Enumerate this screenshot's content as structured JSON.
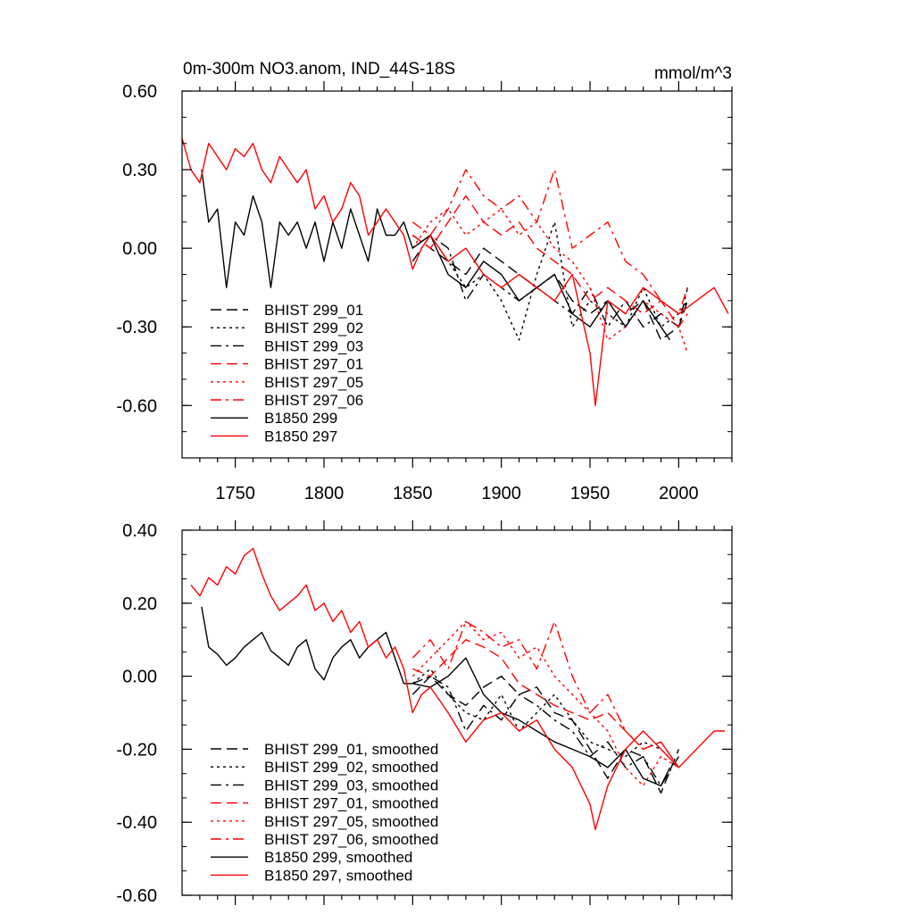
{
  "chart_data": [
    {
      "type": "line",
      "title": "0m-300m NO3.anom, IND_44S-18S",
      "units": "mmol/m^3",
      "xlim": [
        1720,
        2030
      ],
      "ylim": [
        -0.8,
        0.6
      ],
      "x_ticks": [
        1750,
        1800,
        1850,
        1900,
        1950,
        2000
      ],
      "x_tick_labels": [
        "1750",
        "1800",
        "1850",
        "1900",
        "1950",
        "2000"
      ],
      "y_ticks": [
        0.6,
        0.3,
        0.0,
        -0.3,
        -0.6
      ],
      "y_tick_labels": [
        "0.60",
        "0.30",
        "0.00",
        "-0.30",
        "-0.60"
      ],
      "grid": false,
      "legend_position": "bottom-left",
      "series": [
        {
          "name": "BHIST 299_01",
          "color": "#000000",
          "dash": "dash",
          "x": [
            1850,
            1860,
            1870,
            1880,
            1890,
            1900,
            1910,
            1920,
            1930,
            1940,
            1950,
            1960,
            1970,
            1980,
            1990,
            2000,
            2005
          ],
          "values": [
            0.05,
            0.0,
            -0.05,
            -0.1,
            0.0,
            -0.05,
            -0.1,
            -0.15,
            -0.1,
            -0.2,
            -0.25,
            -0.2,
            -0.25,
            -0.2,
            -0.35,
            -0.3,
            -0.2
          ]
        },
        {
          "name": "BHIST 299_02",
          "color": "#000000",
          "dash": "dot",
          "x": [
            1850,
            1860,
            1870,
            1880,
            1890,
            1900,
            1910,
            1920,
            1930,
            1940,
            1950,
            1960,
            1970,
            1980,
            1990,
            2000,
            2005
          ],
          "values": [
            0.0,
            0.05,
            -0.05,
            -0.15,
            -0.1,
            -0.2,
            -0.35,
            -0.1,
            0.1,
            -0.3,
            -0.2,
            -0.25,
            -0.3,
            -0.15,
            -0.3,
            -0.25,
            -0.2
          ]
        },
        {
          "name": "BHIST 299_03",
          "color": "#000000",
          "dash": "dashdot",
          "x": [
            1850,
            1860,
            1870,
            1880,
            1890,
            1900,
            1910,
            1920,
            1930,
            1940,
            1950,
            1960,
            1970,
            1980,
            1990,
            2000,
            2005
          ],
          "values": [
            -0.05,
            0.05,
            0.0,
            -0.2,
            -0.1,
            -0.15,
            -0.2,
            -0.15,
            -0.2,
            -0.25,
            -0.15,
            -0.3,
            -0.2,
            -0.3,
            -0.25,
            -0.3,
            -0.15
          ]
        },
        {
          "name": "BHIST 297_01",
          "color": "#ff0000",
          "dash": "dash",
          "x": [
            1850,
            1860,
            1870,
            1880,
            1890,
            1900,
            1910,
            1920,
            1930,
            1940,
            1950,
            1960,
            1970,
            1980,
            1990,
            2000,
            2005
          ],
          "values": [
            0.05,
            0.0,
            0.1,
            0.2,
            0.1,
            0.05,
            0.1,
            0.0,
            -0.05,
            -0.1,
            -0.2,
            -0.15,
            -0.2,
            -0.25,
            -0.2,
            -0.3,
            -0.25
          ]
        },
        {
          "name": "BHIST 297_05",
          "color": "#ff0000",
          "dash": "dot",
          "x": [
            1850,
            1860,
            1870,
            1880,
            1890,
            1900,
            1910,
            1920,
            1930,
            1940,
            1950,
            1960,
            1970,
            1980,
            1990,
            2000,
            2005
          ],
          "values": [
            0.0,
            0.1,
            0.15,
            0.05,
            0.1,
            0.15,
            0.05,
            0.1,
            0.0,
            -0.05,
            -0.15,
            -0.35,
            -0.3,
            -0.2,
            -0.25,
            -0.3,
            -0.4
          ]
        },
        {
          "name": "BHIST 297_06",
          "color": "#ff0000",
          "dash": "dashdot",
          "x": [
            1850,
            1860,
            1870,
            1880,
            1890,
            1900,
            1910,
            1920,
            1930,
            1940,
            1950,
            1960,
            1970,
            1980,
            1990,
            2000,
            2005
          ],
          "values": [
            0.1,
            0.05,
            0.15,
            0.3,
            0.2,
            0.15,
            0.2,
            0.1,
            0.3,
            0.0,
            0.05,
            0.1,
            -0.05,
            -0.1,
            -0.2,
            -0.25,
            -0.15
          ]
        },
        {
          "name": "B1850 299",
          "color": "#000000",
          "dash": "solid",
          "x": [
            1731,
            1735,
            1740,
            1745,
            1750,
            1755,
            1760,
            1765,
            1770,
            1775,
            1780,
            1785,
            1790,
            1795,
            1800,
            1805,
            1810,
            1815,
            1820,
            1825,
            1830,
            1835,
            1840,
            1845,
            1850,
            1860,
            1870,
            1880,
            1890,
            1900,
            1910,
            1920,
            1930,
            1940,
            1950,
            1960,
            1970,
            1980,
            1990,
            1995
          ],
          "values": [
            0.3,
            0.1,
            0.15,
            -0.15,
            0.1,
            0.05,
            0.2,
            0.1,
            -0.15,
            0.1,
            0.05,
            0.1,
            0.0,
            0.1,
            -0.05,
            0.1,
            0.0,
            0.15,
            0.05,
            -0.05,
            0.15,
            0.05,
            0.05,
            0.1,
            0.0,
            0.05,
            -0.1,
            -0.15,
            -0.05,
            -0.1,
            -0.2,
            -0.15,
            -0.1,
            -0.25,
            -0.3,
            -0.2,
            -0.3,
            -0.2,
            -0.3,
            -0.35
          ]
        },
        {
          "name": "B1850 297",
          "color": "#ff0000",
          "dash": "solid",
          "x": [
            1720,
            1725,
            1730,
            1735,
            1740,
            1745,
            1750,
            1755,
            1760,
            1765,
            1770,
            1775,
            1780,
            1785,
            1790,
            1795,
            1800,
            1805,
            1810,
            1815,
            1820,
            1825,
            1830,
            1835,
            1840,
            1845,
            1850,
            1855,
            1860,
            1870,
            1880,
            1890,
            1900,
            1910,
            1920,
            1930,
            1940,
            1950,
            1953,
            1960,
            1970,
            1980,
            1990,
            2000,
            2010,
            2020,
            2028
          ],
          "values": [
            0.42,
            0.3,
            0.25,
            0.4,
            0.35,
            0.3,
            0.38,
            0.35,
            0.4,
            0.3,
            0.25,
            0.35,
            0.3,
            0.25,
            0.3,
            0.15,
            0.2,
            0.1,
            0.15,
            0.25,
            0.2,
            0.05,
            0.1,
            0.15,
            0.1,
            0.05,
            -0.08,
            0.0,
            0.05,
            -0.05,
            0.0,
            -0.1,
            -0.15,
            -0.1,
            -0.15,
            -0.2,
            -0.1,
            -0.4,
            -0.6,
            -0.2,
            -0.25,
            -0.15,
            -0.2,
            -0.25,
            -0.2,
            -0.15,
            -0.25
          ]
        }
      ]
    },
    {
      "type": "line",
      "xlim": [
        1720,
        2030
      ],
      "ylim": [
        -0.6,
        0.4
      ],
      "y_ticks": [
        0.4,
        0.2,
        0.0,
        -0.2,
        -0.4,
        -0.6
      ],
      "y_tick_labels": [
        "0.40",
        "0.20",
        "0.00",
        "-0.20",
        "-0.40",
        "-0.60"
      ],
      "grid": false,
      "legend_position": "bottom-left",
      "series": [
        {
          "name": "BHIST 299_01, smoothed",
          "color": "#000000",
          "dash": "dash",
          "x": [
            1850,
            1860,
            1870,
            1880,
            1890,
            1900,
            1910,
            1920,
            1930,
            1940,
            1950,
            1960,
            1970,
            1980,
            1990,
            2000
          ],
          "values": [
            -0.05,
            0.0,
            -0.05,
            -0.08,
            -0.03,
            0.0,
            -0.05,
            -0.03,
            -0.1,
            -0.12,
            -0.2,
            -0.28,
            -0.2,
            -0.22,
            -0.32,
            -0.2
          ]
        },
        {
          "name": "BHIST 299_02, smoothed",
          "color": "#000000",
          "dash": "dot",
          "x": [
            1850,
            1860,
            1870,
            1880,
            1890,
            1900,
            1910,
            1920,
            1930,
            1940,
            1950,
            1960,
            1970,
            1980,
            1990,
            2000
          ],
          "values": [
            -0.02,
            0.02,
            -0.05,
            -0.1,
            -0.12,
            -0.05,
            -0.15,
            -0.1,
            -0.05,
            -0.12,
            -0.18,
            -0.2,
            -0.22,
            -0.18,
            -0.2,
            -0.25
          ]
        },
        {
          "name": "BHIST 299_03, smoothed",
          "color": "#000000",
          "dash": "dashdot",
          "x": [
            1850,
            1860,
            1870,
            1880,
            1890,
            1900,
            1910,
            1920,
            1930,
            1940,
            1950,
            1960,
            1970,
            1980,
            1990,
            2000
          ],
          "values": [
            -0.02,
            0.0,
            -0.03,
            -0.15,
            -0.08,
            -0.12,
            -0.05,
            -0.08,
            -0.12,
            -0.15,
            -0.22,
            -0.18,
            -0.25,
            -0.22,
            -0.3,
            -0.22
          ]
        },
        {
          "name": "BHIST 297_01, smoothed",
          "color": "#ff0000",
          "dash": "dash",
          "x": [
            1850,
            1860,
            1870,
            1880,
            1890,
            1900,
            1910,
            1920,
            1930,
            1940,
            1950,
            1960,
            1970,
            1980,
            1990,
            2000
          ],
          "values": [
            0.02,
            0.0,
            0.05,
            0.1,
            0.08,
            0.05,
            -0.02,
            -0.05,
            -0.08,
            -0.1,
            -0.12,
            -0.1,
            -0.15,
            -0.2,
            -0.18,
            -0.25
          ]
        },
        {
          "name": "BHIST 297_05, smoothed",
          "color": "#ff0000",
          "dash": "dot",
          "x": [
            1850,
            1860,
            1870,
            1880,
            1890,
            1900,
            1910,
            1920,
            1930,
            1940,
            1950,
            1960,
            1970,
            1980,
            1990,
            2000
          ],
          "values": [
            0.0,
            0.05,
            0.1,
            0.15,
            0.1,
            0.12,
            0.05,
            0.08,
            0.0,
            -0.05,
            -0.1,
            -0.15,
            -0.25,
            -0.3,
            -0.22,
            -0.25
          ]
        },
        {
          "name": "BHIST 297_06, smoothed",
          "color": "#ff0000",
          "dash": "dashdot",
          "x": [
            1850,
            1860,
            1870,
            1880,
            1890,
            1900,
            1910,
            1920,
            1930,
            1940,
            1950,
            1960,
            1970,
            1980,
            1990,
            2000
          ],
          "values": [
            0.05,
            0.1,
            0.02,
            0.15,
            0.12,
            0.08,
            0.1,
            0.02,
            0.15,
            0.0,
            -0.1,
            -0.05,
            -0.15,
            -0.2,
            -0.18,
            -0.25
          ]
        },
        {
          "name": "B1850 299, smoothed",
          "color": "#000000",
          "dash": "solid",
          "x": [
            1731,
            1735,
            1740,
            1745,
            1750,
            1755,
            1760,
            1765,
            1770,
            1775,
            1780,
            1785,
            1790,
            1795,
            1800,
            1805,
            1810,
            1815,
            1820,
            1825,
            1830,
            1835,
            1840,
            1845,
            1850,
            1860,
            1870,
            1880,
            1890,
            1900,
            1910,
            1920,
            1930,
            1940,
            1950,
            1960,
            1970,
            1980,
            1990,
            1995
          ],
          "values": [
            0.19,
            0.08,
            0.06,
            0.03,
            0.05,
            0.08,
            0.1,
            0.12,
            0.07,
            0.05,
            0.03,
            0.08,
            0.1,
            0.02,
            -0.01,
            0.05,
            0.08,
            0.1,
            0.05,
            0.08,
            0.1,
            0.12,
            0.05,
            -0.02,
            -0.02,
            -0.03,
            0.0,
            0.05,
            -0.05,
            -0.1,
            -0.12,
            -0.15,
            -0.18,
            -0.2,
            -0.22,
            -0.25,
            -0.2,
            -0.28,
            -0.3,
            -0.25
          ]
        },
        {
          "name": "B1850 297, smoothed",
          "color": "#ff0000",
          "dash": "solid",
          "x": [
            1725,
            1730,
            1735,
            1740,
            1745,
            1750,
            1755,
            1760,
            1765,
            1770,
            1775,
            1780,
            1785,
            1790,
            1795,
            1800,
            1805,
            1810,
            1815,
            1820,
            1825,
            1830,
            1835,
            1840,
            1845,
            1850,
            1855,
            1860,
            1870,
            1880,
            1890,
            1900,
            1910,
            1920,
            1930,
            1940,
            1950,
            1953,
            1960,
            1970,
            1980,
            1990,
            2000,
            2010,
            2020,
            2026
          ],
          "values": [
            0.25,
            0.22,
            0.27,
            0.25,
            0.3,
            0.28,
            0.33,
            0.35,
            0.28,
            0.22,
            0.18,
            0.2,
            0.22,
            0.25,
            0.18,
            0.2,
            0.15,
            0.18,
            0.12,
            0.15,
            0.08,
            0.1,
            0.05,
            0.08,
            0.02,
            -0.1,
            -0.05,
            -0.03,
            -0.1,
            -0.18,
            -0.12,
            -0.1,
            -0.15,
            -0.12,
            -0.2,
            -0.25,
            -0.35,
            -0.42,
            -0.3,
            -0.2,
            -0.15,
            -0.2,
            -0.25,
            -0.2,
            -0.15,
            -0.15
          ]
        }
      ]
    }
  ],
  "colors": {
    "black": "#000000",
    "red": "#ff0000"
  }
}
